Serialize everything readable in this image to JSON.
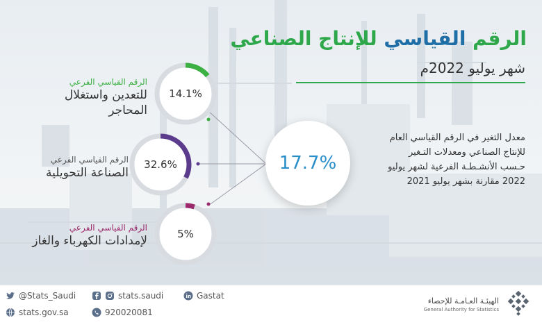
{
  "title": {
    "part_green": "الرقم",
    "part_blue": "القياسي",
    "part_rest": "للإنتاج الصناعي"
  },
  "subtitle": "شهر يوليو  2022م",
  "main_value": "17.7%",
  "description": "معدل التغير في الرقم القياسي العام للإنتاج الصناعي ومعدلات التـغير حـسب الأنشـطـة الفرعية لشهر يوليو 2022 مقارنة بشهر يوليو  2021",
  "gauges": [
    {
      "value_label": "14.1%",
      "fraction": 0.141,
      "color": "#3cb043",
      "label_small": "الرقم القياسي الفرعي",
      "label_big_1": "للتعدين واستغلال",
      "label_big_2": "المحاجر",
      "label_color": "#3cb043"
    },
    {
      "value_label": "32.6%",
      "fraction": 0.326,
      "color": "#5b3c8c",
      "label_small": "الرقم القياسي الفرعي",
      "label_big_1": "الصناعة التحويلية",
      "label_big_2": "",
      "label_color": "#555555"
    },
    {
      "value_label": "5%",
      "fraction": 0.05,
      "color": "#9a2a6b",
      "label_small": "الرقم القياسي الفرعي",
      "label_big_1": "لإمدادات الكهرباء والغاز",
      "label_big_2": "",
      "label_color": "#9a2a6b"
    }
  ],
  "footer": {
    "twitter": "@Stats_Saudi",
    "instagram": "stats.saudi",
    "linkedin": "Gastat",
    "website": "stats.gov.sa",
    "phone": "920020081",
    "logo_ar": "الهيئـة العـامـة للإحصاء",
    "logo_en": "General Authority for Statistics"
  },
  "colors": {
    "green": "#2ea84a",
    "blue": "#1f6fa6",
    "main_value": "#2a8fc9",
    "connector": "#9a2a6b"
  }
}
